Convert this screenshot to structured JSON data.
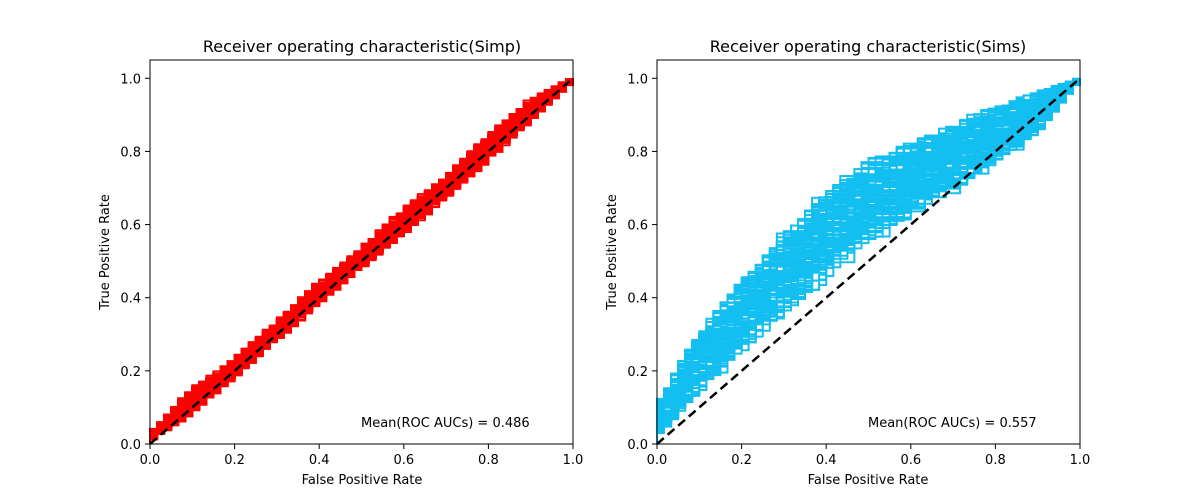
{
  "chart_data": [
    {
      "type": "line",
      "title": "Receiver operating characteristic(Simp)",
      "xlabel": "False Positive Rate",
      "ylabel": "True Positive Rate",
      "xlim": [
        0.0,
        1.0
      ],
      "ylim": [
        0.0,
        1.05
      ],
      "xticks": [
        "0.0",
        "0.2",
        "0.4",
        "0.6",
        "0.8",
        "1.0"
      ],
      "yticks": [
        "0.0",
        "0.2",
        "0.4",
        "0.6",
        "0.8",
        "1.0"
      ],
      "grid": false,
      "annotation": "Mean(ROC AUCs) = 0.486",
      "curve_color": "#ff0000",
      "diagonal_color": "#000000",
      "curve_count": 100,
      "curve_band": [
        {
          "x": 0.0,
          "y_low": 0.0,
          "y_high": 0.02
        },
        {
          "x": 0.1,
          "y_low": 0.07,
          "y_high": 0.15
        },
        {
          "x": 0.2,
          "y_low": 0.17,
          "y_high": 0.23
        },
        {
          "x": 0.3,
          "y_low": 0.27,
          "y_high": 0.33
        },
        {
          "x": 0.4,
          "y_low": 0.37,
          "y_high": 0.44
        },
        {
          "x": 0.5,
          "y_low": 0.47,
          "y_high": 0.53
        },
        {
          "x": 0.6,
          "y_low": 0.56,
          "y_high": 0.64
        },
        {
          "x": 0.7,
          "y_low": 0.66,
          "y_high": 0.73
        },
        {
          "x": 0.8,
          "y_low": 0.76,
          "y_high": 0.84
        },
        {
          "x": 0.9,
          "y_low": 0.87,
          "y_high": 0.94
        },
        {
          "x": 1.0,
          "y_low": 0.98,
          "y_high": 1.0
        }
      ],
      "diagonal": {
        "x": [
          0.0,
          1.0
        ],
        "y": [
          0.0,
          1.0
        ]
      }
    },
    {
      "type": "line",
      "title": "Receiver operating characteristic(Sims)",
      "xlabel": "False Positive Rate",
      "ylabel": "True Positive Rate",
      "xlim": [
        0.0,
        1.0
      ],
      "ylim": [
        0.0,
        1.05
      ],
      "xticks": [
        "0.0",
        "0.2",
        "0.4",
        "0.6",
        "0.8",
        "1.0"
      ],
      "yticks": [
        "0.0",
        "0.2",
        "0.4",
        "0.6",
        "0.8",
        "1.0"
      ],
      "grid": false,
      "annotation": "Mean(ROC AUCs) = 0.557",
      "curve_color": "#13bff0",
      "diagonal_color": "#000000",
      "curve_count": 100,
      "curve_band": [
        {
          "x": 0.0,
          "y_low": 0.0,
          "y_high": 0.1
        },
        {
          "x": 0.1,
          "y_low": 0.12,
          "y_high": 0.3
        },
        {
          "x": 0.2,
          "y_low": 0.22,
          "y_high": 0.45
        },
        {
          "x": 0.3,
          "y_low": 0.32,
          "y_high": 0.58
        },
        {
          "x": 0.4,
          "y_low": 0.42,
          "y_high": 0.7
        },
        {
          "x": 0.5,
          "y_low": 0.5,
          "y_high": 0.79
        },
        {
          "x": 0.6,
          "y_low": 0.58,
          "y_high": 0.84
        },
        {
          "x": 0.7,
          "y_low": 0.66,
          "y_high": 0.88
        },
        {
          "x": 0.8,
          "y_low": 0.73,
          "y_high": 0.93
        },
        {
          "x": 0.9,
          "y_low": 0.83,
          "y_high": 0.97
        },
        {
          "x": 1.0,
          "y_low": 0.98,
          "y_high": 1.0
        }
      ],
      "diagonal": {
        "x": [
          0.0,
          1.0
        ],
        "y": [
          0.0,
          1.0
        ]
      }
    }
  ]
}
